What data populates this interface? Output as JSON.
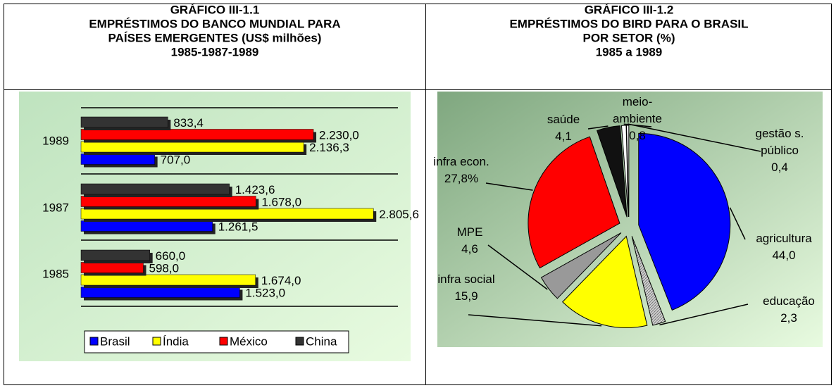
{
  "chart_data": [
    {
      "type": "bar",
      "title": [
        "GRÁFICO III-1.1",
        "EMPRÉSTIMOS DO BANCO MUNDIAL PARA",
        "PAÍSES EMERGENTES (US$ milhões)",
        "1985-1987-1989"
      ],
      "categories": [
        "1989",
        "1987",
        "1985"
      ],
      "series": [
        {
          "name": "Brasil",
          "color": "#0000ff",
          "values": [
            707.0,
            1261.5,
            1523.0
          ],
          "value_labels": [
            "707,0",
            "1.261,5",
            "1.523,0"
          ]
        },
        {
          "name": "Índia",
          "color": "#ffff00",
          "values": [
            2136.3,
            2805.6,
            1674.0
          ],
          "value_labels": [
            "2.136,3",
            "2.805,6",
            "1.674,0"
          ]
        },
        {
          "name": "México",
          "color": "#ff0000",
          "values": [
            2230.0,
            1678.0,
            598.0
          ],
          "value_labels": [
            "2.230,0",
            "1.678,0",
            "598,0"
          ]
        },
        {
          "name": "China",
          "color": "#333333",
          "values": [
            833.4,
            1423.6,
            660.0
          ],
          "value_labels": [
            "833,4",
            "1.423,6",
            "660,0"
          ]
        }
      ],
      "xlim": [
        0,
        3000
      ],
      "legend": "bottom"
    },
    {
      "type": "pie",
      "title": [
        "GRÁFICO III-1.2",
        "EMPRÉSTIMOS DO BIRD PARA O BRASIL",
        "POR SETOR (%)",
        "1985 a 1989"
      ],
      "categories": [
        "agricultura",
        "educação",
        "infra social",
        "MPE",
        "infra econ.",
        "saúde",
        "meio-ambiente",
        "gestão s. público"
      ],
      "values": [
        44.0,
        2.3,
        15.9,
        4.6,
        27.8,
        4.1,
        0.8,
        0.4
      ],
      "value_labels": [
        "44,0",
        "2,3",
        "15,9",
        "4,6",
        "27,8%",
        "4,1",
        "0,8",
        "0,4"
      ],
      "colors": [
        "#0000ff",
        "#b4b4b4",
        "#ffff00",
        "#999999",
        "#ff0000",
        "#111111",
        "#ffffff",
        "#ffffff"
      ]
    }
  ]
}
